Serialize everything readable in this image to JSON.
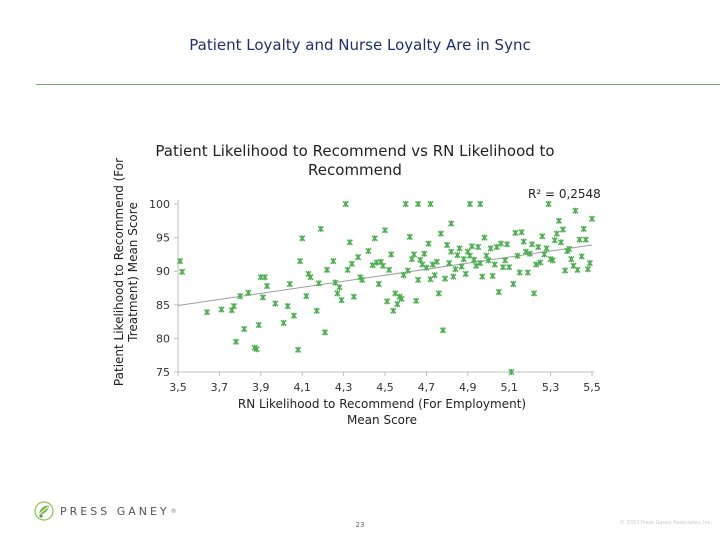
{
  "slide": {
    "title": "Patient Loyalty and Nurse Loyalty Are in Sync",
    "page_number": "23",
    "brand": "PRESS GANEY",
    "brand_mark": "®",
    "copyright": "© 2013 Press Ganey Associates, Inc."
  },
  "colors": {
    "title": "#1f2e6e",
    "rule": "#7aa86a",
    "points": "#4caf50",
    "trendline": "#9e9e9e",
    "axis": "#bfbfbf"
  },
  "chart_data": {
    "type": "scatter",
    "title": "Patient Likelihood to Recommend vs RN Likelihood to Recommend",
    "xlabel": "RN Likelihood to Recommend (For Employment) Mean Score",
    "ylabel": "Patient Likelihood to Recommend (For Treatment) Mean Score",
    "xlim": [
      3.5,
      5.5
    ],
    "ylim": [
      75,
      100
    ],
    "x_ticks": [
      "3,5",
      "3,7",
      "3,9",
      "4,1",
      "4,3",
      "4,5",
      "4,7",
      "4,9",
      "5,1",
      "5,3",
      "5,5"
    ],
    "y_ticks": [
      "75",
      "80",
      "85",
      "90",
      "95",
      "100"
    ],
    "r_squared_label": "R² = 0,2548",
    "trendline": {
      "x": [
        3.5,
        5.5
      ],
      "y": [
        84.9,
        93.9
      ]
    },
    "grid": false,
    "series": [
      {
        "points": [
          [
            3.51,
            91.5
          ],
          [
            3.52,
            89.9
          ],
          [
            3.64,
            83.9
          ],
          [
            3.71,
            84.3
          ],
          [
            3.76,
            84.2
          ],
          [
            3.77,
            84.8
          ],
          [
            3.8,
            86.3
          ],
          [
            3.82,
            81.4
          ],
          [
            3.84,
            86.8
          ],
          [
            3.87,
            78.6
          ],
          [
            3.88,
            78.4
          ],
          [
            3.89,
            82.0
          ],
          [
            3.9,
            89.1
          ],
          [
            3.91,
            86.1
          ],
          [
            3.92,
            89.1
          ],
          [
            3.93,
            87.8
          ],
          [
            3.97,
            85.2
          ],
          [
            4.01,
            82.3
          ],
          [
            4.03,
            84.8
          ],
          [
            4.04,
            88.1
          ],
          [
            4.06,
            83.4
          ],
          [
            4.09,
            91.5
          ],
          [
            4.1,
            94.9
          ],
          [
            4.12,
            86.3
          ],
          [
            4.13,
            89.6
          ],
          [
            4.14,
            89.1
          ],
          [
            4.17,
            84.1
          ],
          [
            4.18,
            88.2
          ],
          [
            4.19,
            96.3
          ],
          [
            4.22,
            90.2
          ],
          [
            4.25,
            91.5
          ],
          [
            4.26,
            88.3
          ],
          [
            4.27,
            86.7
          ],
          [
            4.28,
            87.6
          ],
          [
            4.29,
            85.7
          ],
          [
            4.31,
            100.0
          ],
          [
            4.32,
            90.2
          ],
          [
            4.33,
            94.3
          ],
          [
            4.34,
            91.1
          ],
          [
            4.35,
            86.2
          ],
          [
            4.37,
            92.1
          ],
          [
            4.38,
            89.1
          ],
          [
            4.39,
            88.7
          ],
          [
            4.42,
            93.0
          ],
          [
            4.44,
            90.9
          ],
          [
            4.46,
            91.3
          ],
          [
            4.47,
            88.1
          ],
          [
            4.48,
            91.4
          ],
          [
            4.49,
            90.8
          ],
          [
            4.5,
            96.1
          ],
          [
            4.51,
            85.5
          ],
          [
            4.52,
            90.2
          ],
          [
            4.53,
            92.5
          ],
          [
            4.54,
            84.1
          ],
          [
            4.55,
            86.7
          ],
          [
            4.56,
            85.1
          ],
          [
            4.57,
            86.2
          ],
          [
            4.58,
            85.9
          ],
          [
            4.59,
            89.4
          ],
          [
            4.61,
            90.1
          ],
          [
            4.62,
            95.1
          ],
          [
            4.63,
            91.8
          ],
          [
            4.64,
            92.5
          ],
          [
            4.65,
            85.6
          ],
          [
            4.66,
            88.7
          ],
          [
            4.67,
            91.7
          ],
          [
            4.68,
            91.0
          ],
          [
            4.69,
            92.6
          ],
          [
            4.7,
            90.5
          ],
          [
            4.71,
            94.1
          ],
          [
            4.72,
            88.8
          ],
          [
            4.73,
            91.0
          ],
          [
            4.74,
            89.4
          ],
          [
            4.75,
            91.4
          ],
          [
            4.76,
            86.7
          ],
          [
            4.77,
            95.6
          ],
          [
            4.78,
            81.2
          ],
          [
            4.79,
            88.9
          ],
          [
            4.8,
            93.9
          ],
          [
            4.81,
            91.2
          ],
          [
            4.82,
            92.9
          ],
          [
            4.83,
            89.2
          ],
          [
            4.84,
            90.3
          ],
          [
            4.85,
            92.4
          ],
          [
            4.86,
            93.4
          ],
          [
            4.87,
            90.7
          ],
          [
            4.88,
            91.8
          ],
          [
            4.89,
            89.6
          ],
          [
            4.9,
            92.9
          ],
          [
            4.91,
            92.3
          ],
          [
            4.92,
            93.7
          ],
          [
            4.93,
            91.7
          ],
          [
            4.94,
            90.8
          ],
          [
            4.95,
            93.6
          ],
          [
            4.96,
            91.2
          ],
          [
            4.97,
            89.2
          ],
          [
            4.98,
            95.0
          ],
          [
            4.99,
            92.3
          ],
          [
            5.0,
            91.6
          ],
          [
            5.01,
            93.4
          ],
          [
            5.02,
            89.3
          ],
          [
            5.03,
            91.0
          ],
          [
            5.04,
            93.6
          ],
          [
            5.05,
            86.9
          ],
          [
            5.06,
            94.1
          ],
          [
            5.07,
            90.6
          ],
          [
            5.08,
            91.6
          ],
          [
            5.09,
            94.0
          ],
          [
            5.1,
            90.6
          ],
          [
            5.11,
            75.0
          ],
          [
            5.12,
            88.1
          ],
          [
            5.13,
            95.7
          ],
          [
            5.14,
            92.3
          ],
          [
            5.15,
            89.8
          ],
          [
            5.16,
            95.8
          ],
          [
            5.17,
            94.4
          ],
          [
            5.18,
            92.9
          ],
          [
            5.19,
            89.8
          ],
          [
            5.2,
            92.6
          ],
          [
            5.21,
            94.0
          ],
          [
            5.22,
            86.7
          ],
          [
            5.23,
            91.0
          ],
          [
            5.24,
            93.6
          ],
          [
            5.25,
            91.3
          ],
          [
            5.26,
            95.2
          ],
          [
            5.27,
            92.5
          ],
          [
            5.28,
            93.4
          ],
          [
            5.29,
            100.0
          ],
          [
            5.3,
            91.8
          ],
          [
            5.31,
            91.6
          ],
          [
            5.32,
            94.6
          ],
          [
            5.33,
            95.6
          ],
          [
            5.34,
            97.5
          ],
          [
            5.35,
            94.3
          ],
          [
            5.36,
            96.2
          ],
          [
            5.37,
            90.1
          ],
          [
            5.38,
            93.0
          ],
          [
            5.39,
            93.3
          ],
          [
            5.4,
            91.8
          ],
          [
            5.41,
            90.8
          ],
          [
            5.42,
            99.0
          ],
          [
            5.43,
            90.2
          ],
          [
            5.44,
            94.7
          ],
          [
            5.45,
            92.2
          ],
          [
            5.46,
            96.3
          ],
          [
            5.47,
            94.7
          ],
          [
            5.48,
            90.3
          ],
          [
            5.49,
            91.2
          ],
          [
            5.5,
            97.8
          ],
          [
            4.6,
            100.0
          ],
          [
            4.66,
            100.0
          ],
          [
            4.72,
            100.0
          ],
          [
            4.91,
            100.0
          ],
          [
            4.96,
            100.0
          ],
          [
            4.82,
            97.1
          ],
          [
            4.21,
            80.9
          ],
          [
            4.08,
            78.3
          ],
          [
            3.78,
            79.5
          ],
          [
            4.45,
            94.9
          ]
        ]
      }
    ]
  }
}
